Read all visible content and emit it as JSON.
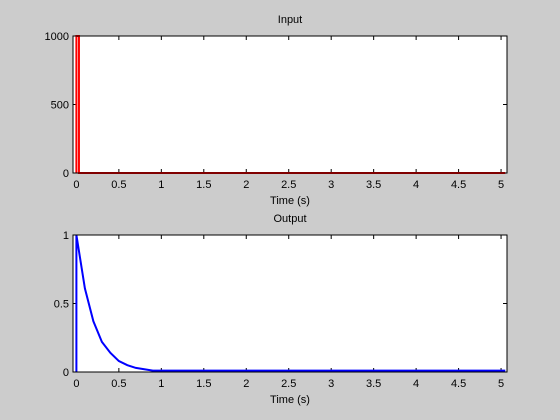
{
  "chart_data": [
    {
      "type": "line",
      "title": "Input",
      "xlabel": "Time (s)",
      "x": [
        0,
        0,
        0.03,
        0.03,
        5.05
      ],
      "values": [
        0,
        1000,
        1000,
        0,
        0
      ],
      "color": "#ff0000",
      "xlim": [
        -0.04,
        5.07
      ],
      "ylim": [
        0,
        1000
      ],
      "xticks": [
        0,
        0.5,
        1,
        1.5,
        2,
        2.5,
        3,
        3.5,
        4,
        4.5,
        5
      ],
      "yticks": [
        0,
        500,
        1000
      ]
    },
    {
      "type": "line",
      "title": "Output",
      "xlabel": "Time (s)",
      "x": [
        0,
        0,
        0.1,
        0.2,
        0.3,
        0.4,
        0.5,
        0.6,
        0.7,
        0.8,
        0.9,
        1.0,
        5.05
      ],
      "values": [
        0,
        1,
        0.61,
        0.37,
        0.22,
        0.14,
        0.08,
        0.05,
        0.03,
        0.02,
        0.01,
        0.01,
        0.01
      ],
      "color": "#0000ff",
      "xlim": [
        -0.04,
        5.07
      ],
      "ylim": [
        0,
        1
      ],
      "xticks": [
        0,
        0.5,
        1,
        1.5,
        2,
        2.5,
        3,
        3.5,
        4,
        4.5,
        5
      ],
      "yticks": [
        0,
        0.5,
        1
      ]
    }
  ]
}
